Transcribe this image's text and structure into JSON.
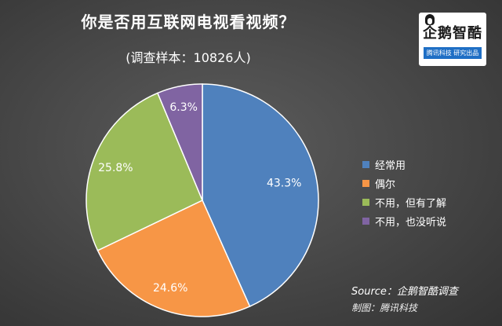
{
  "chart_data": {
    "type": "pie",
    "title": "你是否用互联网电视看视频？",
    "subtitle": "(调查样本：10826人)",
    "categories": [
      "经常用",
      "偶尔",
      "不用，但有了解",
      "不用，也没听说"
    ],
    "values": [
      43.3,
      24.6,
      25.8,
      6.3
    ],
    "labels": [
      "43.3%",
      "24.6%",
      "25.8%",
      "6.3%"
    ],
    "colors": [
      "#4f81bd",
      "#f79646",
      "#9bbb59",
      "#8064a2"
    ],
    "legend_position": "right"
  },
  "logo": {
    "name": "企鹅智酷",
    "tagline": "腾讯科技  研究出品"
  },
  "footer": {
    "source": "Source：企鹅智酷调查",
    "credit": "制图：腾讯科技"
  }
}
